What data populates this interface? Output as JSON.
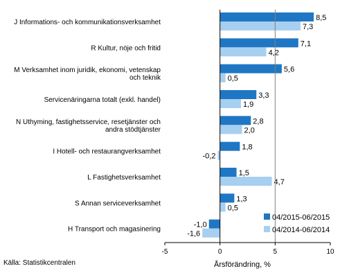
{
  "chart_data": {
    "type": "bar",
    "orientation": "horizontal",
    "categories": [
      [
        "J Informations- och kommunikationsverksamhet"
      ],
      [
        "R Kultur, nöje och fritid"
      ],
      [
        "M Verksamhet inom juridik, ekonomi, vetenskap",
        "och teknik"
      ],
      [
        "Servicenäringarna totalt (exkl. handel)"
      ],
      [
        "N Uthyming, fastighetsservice, resetjänster och",
        "andra stödtjänster"
      ],
      [
        "I Hotell- och restaurangverksamhet"
      ],
      [
        "L Fastighetsverksamhet"
      ],
      [
        "S Annan serviceverksamhet"
      ],
      [
        "H Transport och magasinering"
      ]
    ],
    "series": [
      {
        "name": "04/2015-06/2015",
        "color": "#1f77c4",
        "values": [
          8.5,
          7.1,
          5.6,
          3.3,
          2.8,
          1.8,
          1.5,
          1.3,
          -1.0
        ],
        "labels": [
          "8,5",
          "7,1",
          "5,6",
          "3,3",
          "2,8",
          "1,8",
          "1,5",
          "1,3",
          "-1,0"
        ]
      },
      {
        "name": "04/2014-06/2014",
        "color": "#a6cff0",
        "values": [
          7.3,
          4.2,
          0.5,
          1.9,
          2.0,
          -0.2,
          4.7,
          0.5,
          -1.6
        ],
        "labels": [
          "7,3",
          "4,2",
          "0,5",
          "1,9",
          "2,0",
          "-0,2",
          "4,7",
          "0,5",
          "-1,6"
        ]
      }
    ],
    "xlim": [
      -5,
      10
    ],
    "xticks": [
      -5,
      0,
      5,
      10
    ],
    "xlabel": "Årsförändring, %",
    "ylabel": "",
    "grid": false,
    "reference_line": 5,
    "legend_position": "bottom-right"
  },
  "source": "Källa:  Statistikcentralen"
}
